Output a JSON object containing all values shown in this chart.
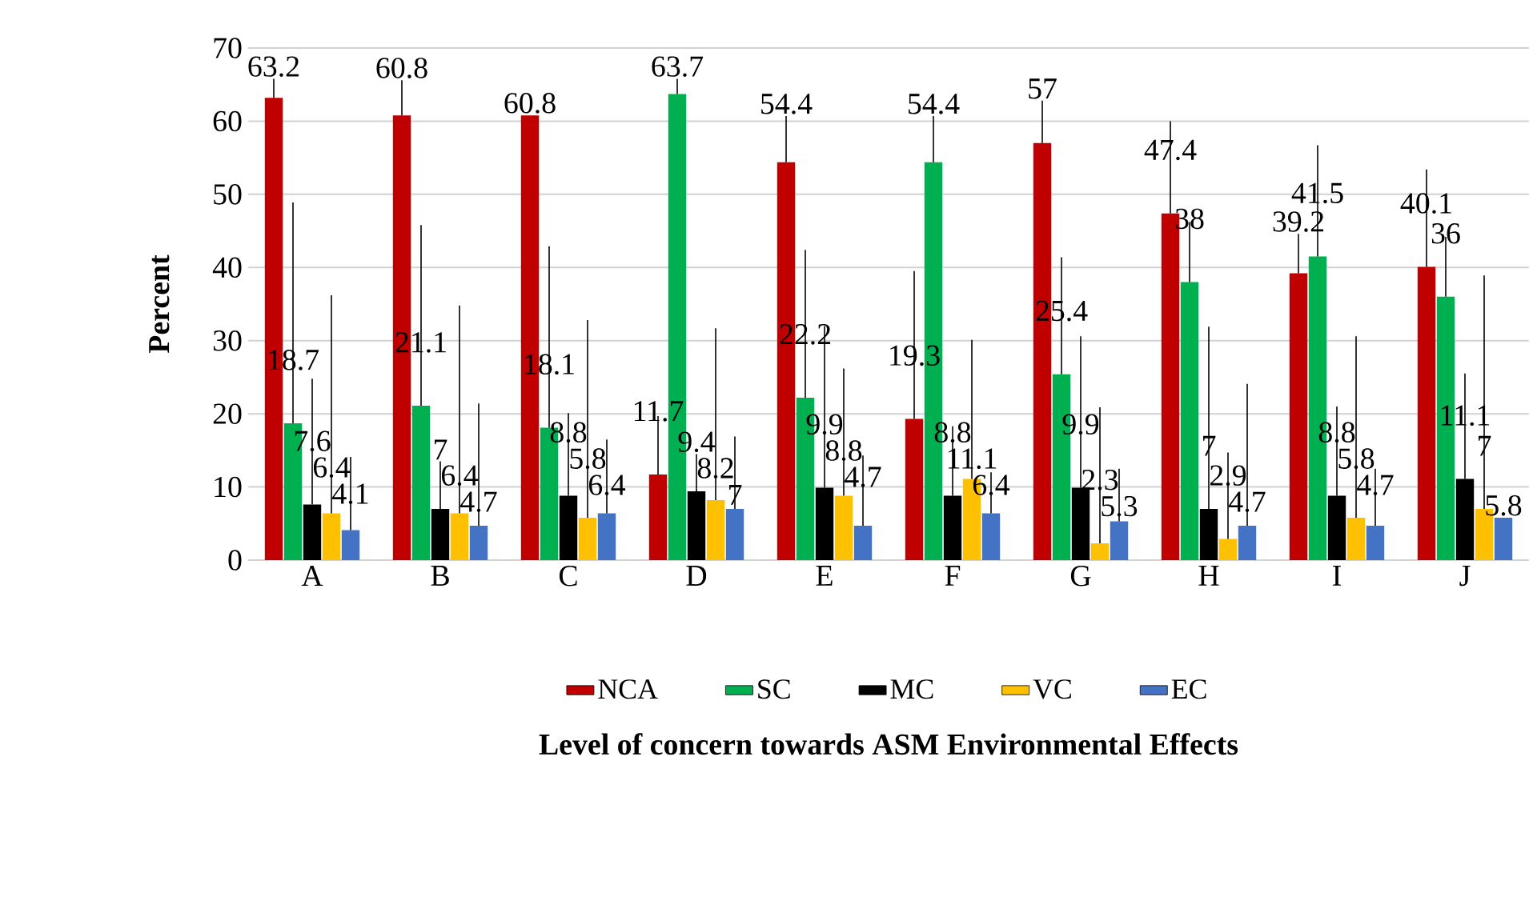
{
  "chart_data": {
    "type": "bar",
    "xlabel": "Level of concern towards ASM Environmental Effects",
    "ylabel": "Percent",
    "categories": [
      "A",
      "B",
      "C",
      "D",
      "E",
      "F",
      "G",
      "H",
      "I",
      "J"
    ],
    "ylim": [
      0,
      70
    ],
    "yticks": [
      0,
      10,
      20,
      30,
      40,
      50,
      60,
      70
    ],
    "grid": "y",
    "legend": "bottom",
    "data_labels": true,
    "series": [
      {
        "name": "NCA",
        "color": "#c00000",
        "values": [
          63.2,
          60.8,
          60.8,
          11.7,
          54.4,
          19.3,
          57,
          47.4,
          39.2,
          40.1
        ],
        "errors": [
          [
            63.2,
            65.8
          ],
          [
            60.8,
            65.6
          ],
          null,
          [
            11.7,
            19.7
          ],
          [
            54.4,
            60.7
          ],
          [
            19.3,
            39.5
          ],
          [
            57,
            62.8
          ],
          [
            47.4,
            60
          ],
          [
            39.2,
            44.6
          ],
          [
            40.1,
            53.4
          ]
        ]
      },
      {
        "name": "SC",
        "color": "#00b050",
        "values": [
          18.7,
          21.1,
          18.1,
          63.7,
          22.2,
          54.4,
          25.4,
          38,
          41.5,
          36
        ],
        "errors": [
          [
            18.7,
            48.9
          ],
          [
            21.1,
            45.8
          ],
          [
            18.1,
            42.9
          ],
          [
            63.7,
            65.8
          ],
          [
            22.2,
            42.4
          ],
          [
            54.4,
            60.7
          ],
          [
            25.4,
            41.4
          ],
          [
            38,
            46.2
          ],
          [
            41.5,
            56.7
          ],
          [
            36,
            44.2
          ]
        ]
      },
      {
        "name": "MC",
        "color": "#000000",
        "values": [
          7.6,
          7,
          8.8,
          9.4,
          9.9,
          8.8,
          9.9,
          7,
          8.8,
          11.1
        ],
        "errors": [
          [
            7.6,
            24.8
          ],
          [
            7,
            13.5
          ],
          [
            8.8,
            20.1
          ],
          [
            9.4,
            14.5
          ],
          [
            9.9,
            32
          ],
          [
            8.8,
            18.3
          ],
          [
            9.9,
            30.6
          ],
          [
            7,
            31.9
          ],
          [
            8.8,
            21
          ],
          [
            11.1,
            25.5
          ]
        ]
      },
      {
        "name": "VC",
        "color": "#ffc000",
        "values": [
          6.4,
          6.4,
          5.8,
          8.2,
          8.8,
          11.1,
          2.3,
          2.9,
          5.8,
          7
        ],
        "errors": [
          [
            6.4,
            36.2
          ],
          [
            6.4,
            34.8
          ],
          [
            5.8,
            32.8
          ],
          [
            8.2,
            31.7
          ],
          [
            8.8,
            26.2
          ],
          [
            11.1,
            30.1
          ],
          [
            2.3,
            20.9
          ],
          [
            2.9,
            14.7
          ],
          [
            5.8,
            30.6
          ],
          [
            7,
            38.9
          ]
        ]
      },
      {
        "name": "EC",
        "color": "#4472c4",
        "values": [
          4.1,
          4.7,
          6.4,
          7,
          4.7,
          6.4,
          5.3,
          4.7,
          4.7,
          5.8
        ],
        "errors": [
          [
            4.1,
            14.1
          ],
          [
            4.7,
            21.4
          ],
          [
            6.4,
            16.5
          ],
          [
            7,
            16.9
          ],
          [
            4.7,
            14.3
          ],
          [
            6.4,
            12
          ],
          [
            5.3,
            12.5
          ],
          [
            4.7,
            24.1
          ],
          [
            4.7,
            12.5
          ],
          null
        ]
      }
    ]
  }
}
